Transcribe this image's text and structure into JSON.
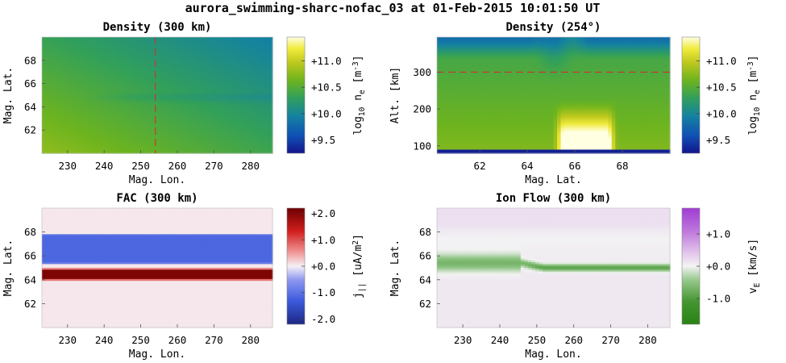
{
  "suptitle": "aurora_swimming-sharc-nofac_03 at 01-Feb-2015 10:01:50 UT",
  "chart_data": [
    {
      "type": "heatmap",
      "title": "Density (300 km)",
      "xlabel": "Mag. Lon.",
      "ylabel": "Mag. Lat.",
      "xlim": [
        223,
        286
      ],
      "ylim": [
        60,
        70
      ],
      "xticks": [
        "230",
        "240",
        "250",
        "260",
        "270",
        "280"
      ],
      "yticks": [
        "62",
        "64",
        "66",
        "68"
      ],
      "colorbar": {
        "label": "log10 ne [m-3]",
        "label_main": "log",
        "label_sub": "10",
        "label_mid": " n",
        "label_sub2": "e",
        "label_unit": " [m",
        "label_sup": "-3",
        "label_end": "]",
        "range": [
          9.25,
          11.45
        ],
        "ticks": [
          "+9.5",
          "+10.0",
          "+10.5",
          "+11.0"
        ],
        "tick_values": [
          9.5,
          10.0,
          10.5,
          11.0
        ],
        "colormap": "viridis-like"
      },
      "reference_line": {
        "axis": "x",
        "value": 254,
        "style": "dashed",
        "color": "#d03030"
      },
      "description_values": {
        "south_west": 10.75,
        "north_east": 10.15,
        "trough_lat": 64.8
      }
    },
    {
      "type": "heatmap",
      "title": "Density (254°)",
      "xlabel": "Mag. Lat.",
      "ylabel": "Alt. [km]",
      "xlim": [
        60.2,
        70
      ],
      "ylim": [
        80,
        395
      ],
      "xticks": [
        "62",
        "64",
        "66",
        "68"
      ],
      "yticks": [
        "100",
        "200",
        "300"
      ],
      "colorbar": {
        "label": "log10 ne [m-3]",
        "label_main": "log",
        "label_sub": "10",
        "label_mid": " n",
        "label_sub2": "e",
        "label_unit": " [m",
        "label_sup": "-3",
        "label_end": "]",
        "range": [
          9.25,
          11.45
        ],
        "ticks": [
          "+9.5",
          "+10.0",
          "+10.5",
          "+11.0"
        ],
        "tick_values": [
          9.5,
          10.0,
          10.5,
          11.0
        ],
        "colormap": "viridis-like"
      },
      "reference_line": {
        "axis": "y",
        "value": 300,
        "style": "dashed",
        "color": "#d03030"
      },
      "description_values": {
        "bottom_layer_alt": 90,
        "enhancement_lat": [
          65.2,
          67.6
        ],
        "enhancement_peak": 11.3
      }
    },
    {
      "type": "heatmap",
      "title": "FAC (300 km)",
      "xlabel": "Mag. Lon.",
      "ylabel": "Mag. Lat.",
      "xlim": [
        223,
        286
      ],
      "ylim": [
        60,
        70
      ],
      "xticks": [
        "230",
        "240",
        "250",
        "260",
        "270",
        "280"
      ],
      "yticks": [
        "62",
        "64",
        "66",
        "68"
      ],
      "colorbar": {
        "label": "j|| [uA/m2]",
        "label_main": "j",
        "label_sub": "||",
        "label_unit": " [uA/m",
        "label_sup": "2",
        "label_end": "]",
        "range": [
          -2.2,
          2.2
        ],
        "ticks": [
          "-2.0",
          "-1.0",
          "+0.0",
          "+1.0",
          "+2.0"
        ],
        "tick_values": [
          -2.0,
          -1.0,
          0.0,
          1.0,
          2.0
        ],
        "colormap": "blue-white-red"
      },
      "bands": [
        {
          "lat_min": 64.0,
          "lat_max": 64.9,
          "value": 2.0
        },
        {
          "lat_min": 65.3,
          "lat_max": 67.8,
          "value": -1.2
        }
      ]
    },
    {
      "type": "heatmap",
      "title": "Ion Flow (300 km)",
      "xlabel": "Mag. Lon.",
      "ylabel": "Mag. Lat.",
      "xlim": [
        223,
        286
      ],
      "ylim": [
        60,
        70
      ],
      "xticks": [
        "230",
        "240",
        "250",
        "260",
        "270",
        "280"
      ],
      "yticks": [
        "62",
        "64",
        "66",
        "68"
      ],
      "colorbar": {
        "label": "vE [km/s]",
        "label_main": "v",
        "label_sub": "E",
        "label_unit": " [km/s]",
        "range": [
          -1.8,
          1.8
        ],
        "ticks": [
          "-1.0",
          "+0.0",
          "+1.0"
        ],
        "tick_values": [
          -1.0,
          0.0,
          1.0
        ],
        "colormap": "green-white-purple"
      },
      "description_values": {
        "flow_channel_lat_west": 65.4,
        "flow_channel_lat_east": 65.0,
        "min_flow": -0.9
      }
    }
  ]
}
